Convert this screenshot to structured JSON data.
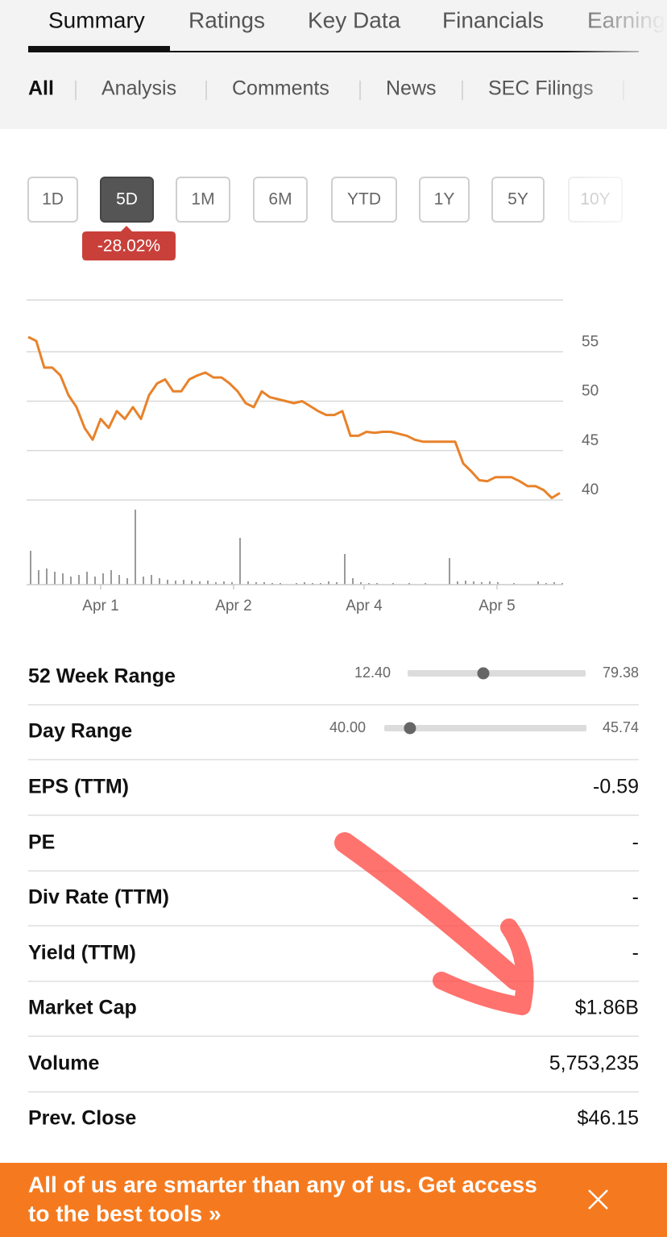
{
  "tabs": [
    "Summary",
    "Ratings",
    "Key Data",
    "Financials",
    "Earnings"
  ],
  "subtabs": [
    "All",
    "Analysis",
    "Comments",
    "News",
    "SEC Filings"
  ],
  "ranges": [
    "1D",
    "5D",
    "1M",
    "6M",
    "YTD",
    "1Y",
    "5Y",
    "10Y"
  ],
  "change_badge": "-28.02%",
  "chart_data": {
    "type": "line",
    "color": "#e8822a",
    "values": [
      56.5,
      56.1,
      53.4,
      53.4,
      52.6,
      50.6,
      49.4,
      47.3,
      46.1,
      48.2,
      47.3,
      49.0,
      48.2,
      49.4,
      48.2,
      50.6,
      51.8,
      52.2,
      51.0,
      51.0,
      52.2,
      52.6,
      52.9,
      52.4,
      52.4,
      51.8,
      51.0,
      49.8,
      49.4,
      51.0,
      50.4,
      50.2,
      50.0,
      49.8,
      50.0,
      49.5,
      49.0,
      48.6,
      48.6,
      49.0,
      46.5,
      46.5,
      46.9,
      46.8,
      46.9,
      46.9,
      46.7,
      46.5,
      46.1,
      45.9,
      45.9,
      45.9,
      45.9,
      45.9,
      43.7,
      42.9,
      42.0,
      41.9,
      42.3,
      42.3,
      42.3,
      41.9,
      41.4,
      41.4,
      41.0,
      40.2,
      40.7
    ],
    "ylim": [
      40,
      60
    ],
    "yticks": [
      40,
      45,
      50,
      55
    ],
    "xlim": [
      0,
      66
    ],
    "xticks": [
      {
        "value": 9,
        "label": "Apr 1"
      },
      {
        "value": 25.5,
        "label": "Apr 2"
      },
      {
        "value": 41.7,
        "label": "Apr 4"
      },
      {
        "value": 58.2,
        "label": "Apr 5"
      }
    ],
    "volume": {
      "color": "#9a9a9a",
      "values": [
        42,
        18,
        20,
        16,
        14,
        10,
        12,
        16,
        10,
        14,
        18,
        12,
        8,
        93,
        10,
        12,
        8,
        6,
        5,
        6,
        5,
        4,
        5,
        3,
        4,
        3,
        58,
        4,
        3,
        3,
        2,
        2,
        0,
        2,
        3,
        2,
        2,
        4,
        3,
        38,
        8,
        3,
        2,
        2,
        0,
        2,
        0,
        2,
        0,
        2,
        0,
        0,
        33,
        4,
        5,
        4,
        3,
        4,
        3,
        0,
        2,
        0,
        0,
        4,
        2,
        3,
        2
      ]
    }
  },
  "stats": [
    {
      "label": "52 Week Range",
      "range": {
        "low": {
          "value": 12.4,
          "label": "12.40"
        },
        "high": 79.38,
        "current": 40.88
      }
    },
    {
      "label": "Day Range",
      "range": {
        "low": {
          "value": 40,
          "label": "40.00"
        },
        "high": 45.74,
        "current": 40.73
      }
    },
    {
      "label": "EPS (TTM)",
      "value": "-0.59"
    },
    {
      "label": "PE",
      "value": "-"
    },
    {
      "label": "Div Rate (TTM)",
      "value": "-"
    },
    {
      "label": "Yield (TTM)",
      "value": "-"
    },
    {
      "label": "Market Cap",
      "value": "$1.86B"
    },
    {
      "label": "Volume",
      "value": "5,753,235"
    },
    {
      "label": "Prev. Close",
      "value": "$46.15"
    }
  ],
  "banner": {
    "lines": [
      "All of us are smarter than any of us. Get access",
      "to the best tools »"
    ]
  }
}
